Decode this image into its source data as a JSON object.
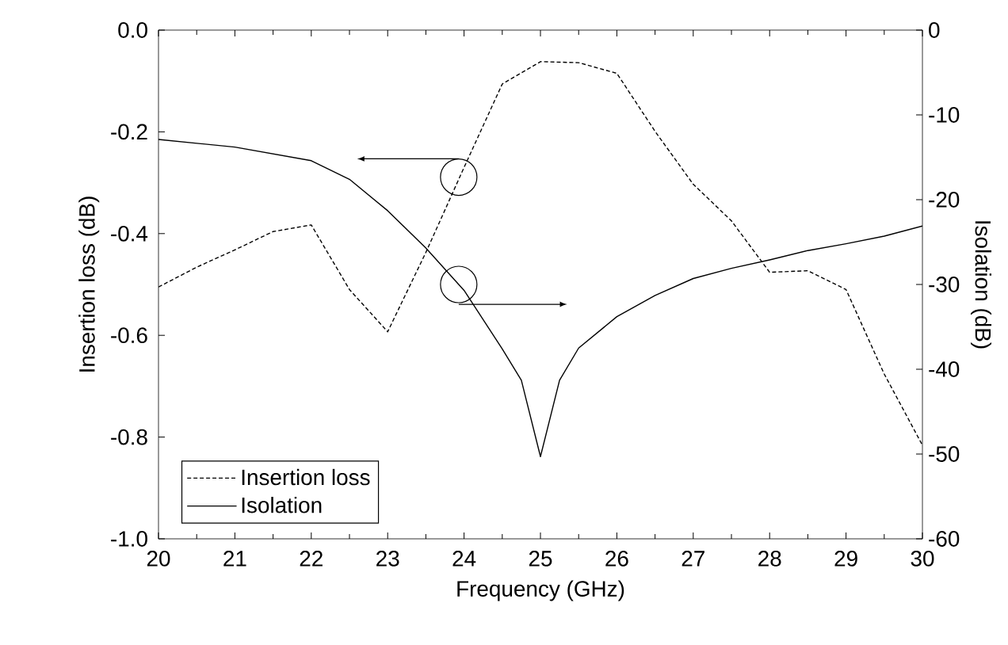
{
  "chart_data": {
    "type": "line",
    "xlabel": "Frequency (GHz)",
    "ylabel": "Insertion loss (dB)",
    "y2label": "Isolation (dB)",
    "x": [
      20,
      20.5,
      21,
      21.5,
      22,
      22.5,
      23,
      23.5,
      24,
      24.5,
      25,
      25.5,
      26,
      26.5,
      27,
      27.5,
      28,
      28.5,
      29,
      29.5,
      30
    ],
    "series": [
      {
        "name": "Insertion loss",
        "color": "#000000",
        "line_style": "dashed",
        "values": [
          -0.505,
          -0.466,
          -0.432,
          -0.396,
          -0.383,
          -0.51,
          -0.593,
          -0.437,
          -0.27,
          -0.106,
          -0.062,
          -0.064,
          -0.085,
          -0.199,
          -0.303,
          -0.375,
          -0.476,
          -0.473,
          -0.51,
          -0.676,
          -0.816
        ]
      },
      {
        "name": "Isolation",
        "color": "#000000",
        "line_style": "solid",
        "axis": "y2",
        "x": [
          20,
          21,
          22,
          22.5,
          23,
          23.5,
          24,
          24.5,
          24.75,
          25,
          25.25,
          25.5,
          26,
          26.5,
          27,
          27.5,
          28,
          28.5,
          29,
          29.5,
          30
        ],
        "values": [
          -12.9,
          -13.8,
          -15.4,
          -17.6,
          -21.3,
          -25.7,
          -30.7,
          -37.6,
          -41.3,
          -50.3,
          -41.3,
          -37.5,
          -33.8,
          -31.3,
          -29.3,
          -28.1,
          -27.1,
          -26.0,
          -25.2,
          -24.3,
          -23.1
        ]
      }
    ],
    "xlim": [
      20,
      30
    ],
    "xticks": [
      20,
      21,
      22,
      23,
      24,
      25,
      26,
      27,
      28,
      29,
      30
    ],
    "ylim": [
      -1.0,
      0.0
    ],
    "yticks": [
      {
        "value": -1.0,
        "label": "-1.0"
      },
      {
        "value": -0.8,
        "label": "-0.8"
      },
      {
        "value": -0.6,
        "label": "-0.6"
      },
      {
        "value": -0.4,
        "label": "-0.4"
      },
      {
        "value": -0.2,
        "label": "-0.2"
      },
      {
        "value": 0.0,
        "label": "0.0"
      }
    ],
    "y2lim": [
      -60,
      0
    ],
    "y2ticks": [
      -60,
      -50,
      -40,
      -30,
      -20,
      -10,
      0
    ],
    "legend": "bottom left",
    "grid": false,
    "marker": "none"
  }
}
